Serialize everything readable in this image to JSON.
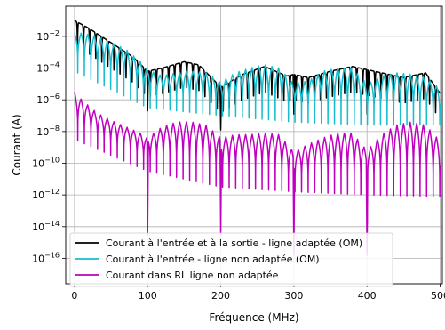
{
  "chart_data": {
    "type": "line",
    "xlabel": "Fréquence (MHz)",
    "ylabel": "Courant (A)",
    "xlim": [
      -12,
      503
    ],
    "ylim_log10": [
      -17.6,
      -0.1
    ],
    "y_scale": "log",
    "grid": true,
    "legend_position": "lower-left",
    "x_ticks": [
      {
        "value": 0,
        "label": "0"
      },
      {
        "value": 100,
        "label": "100"
      },
      {
        "value": 200,
        "label": "200"
      },
      {
        "value": 300,
        "label": "300"
      },
      {
        "value": 400,
        "label": "400"
      },
      {
        "value": 500,
        "label": "500"
      }
    ],
    "y_ticks": [
      {
        "exp": -2,
        "base": "10",
        "sup": "−2"
      },
      {
        "exp": -4,
        "base": "10",
        "sup": "−4"
      },
      {
        "exp": -6,
        "base": "10",
        "sup": "−6"
      },
      {
        "exp": -8,
        "base": "10",
        "sup": "−8"
      },
      {
        "exp": -10,
        "base": "10",
        "sup": "−10"
      },
      {
        "exp": -12,
        "base": "10",
        "sup": "−12"
      },
      {
        "exp": -14,
        "base": "10",
        "sup": "−14"
      },
      {
        "exp": -16,
        "base": "10",
        "sup": "−16"
      }
    ],
    "series": [
      {
        "name": "Courant à l'entrée et à la sortie - ligne adaptée (OM)",
        "color": "#000000",
        "envelope_log10": {
          "x": [
            0,
            20,
            50,
            80,
            100,
            120,
            150,
            170,
            200,
            230,
            260,
            290,
            300,
            320,
            350,
            380,
            400,
            420,
            450,
            480,
            500
          ],
          "y": [
            -1.0,
            -1.5,
            -2.4,
            -3.3,
            -4.2,
            -4.0,
            -3.6,
            -3.8,
            -5.2,
            -4.4,
            -3.9,
            -4.5,
            -4.4,
            -4.6,
            -4.2,
            -3.9,
            -4.1,
            -4.3,
            -4.6,
            -4.3,
            -5.6
          ]
        },
        "notch_spacing_mhz": 8.3,
        "notch_depth_log10": 1.8,
        "deep_nulls": [
          {
            "x": 100,
            "y_log10": -6.7
          },
          {
            "x": 200,
            "y_log10": -7.9
          },
          {
            "x": 300,
            "y_log10": -6.9
          },
          {
            "x": 400,
            "y_log10": -6.9
          }
        ]
      },
      {
        "name": "Courant à l'entrée - ligne non adaptée (OM)",
        "color": "#17becf",
        "envelope_log10": {
          "x": [
            0,
            10,
            30,
            50,
            70,
            90,
            100,
            120,
            140,
            160,
            180,
            200,
            220,
            240,
            260,
            280,
            300,
            320,
            340,
            360,
            380,
            400,
            420,
            440,
            460,
            480,
            500
          ],
          "y": [
            -1.8,
            -1.8,
            -2.0,
            -2.4,
            -2.8,
            -3.6,
            -4.1,
            -4.5,
            -4.3,
            -4.2,
            -4.3,
            -4.9,
            -4.3,
            -4.0,
            -3.8,
            -4.0,
            -5.0,
            -4.8,
            -4.2,
            -4.0,
            -4.0,
            -5.0,
            -4.5,
            -4.3,
            -4.4,
            -4.6,
            -5.3
          ]
        },
        "notch_spacing_mhz": 9.0,
        "notch_floor_log10": {
          "x": [
            0,
            100,
            200,
            300,
            400,
            500
          ],
          "y": [
            -4.2,
            -6.5,
            -7.0,
            -7.4,
            -7.6,
            -7.6
          ]
        }
      },
      {
        "name": "Courant dans RL ligne non adaptée",
        "color": "#bf00bf",
        "envelope_log10": {
          "x": [
            0,
            10,
            30,
            50,
            70,
            90,
            100,
            120,
            140,
            160,
            180,
            200,
            220,
            240,
            260,
            280,
            300,
            320,
            340,
            360,
            380,
            400,
            420,
            440,
            460,
            480,
            500
          ],
          "y": [
            -5.5,
            -6.0,
            -6.8,
            -7.3,
            -7.7,
            -8.1,
            -8.4,
            -7.7,
            -7.4,
            -7.4,
            -7.6,
            -8.4,
            -8.2,
            -8.2,
            -8.1,
            -8.2,
            -9.3,
            -8.8,
            -8.4,
            -8.1,
            -8.1,
            -9.2,
            -8.2,
            -7.6,
            -7.4,
            -7.6,
            -8.6
          ]
        },
        "notch_spacing_mhz": 9.0,
        "notch_floor_log10": {
          "x": [
            0,
            100,
            200,
            300,
            400,
            500
          ],
          "y": [
            -8.5,
            -10.5,
            -11.5,
            -11.8,
            -12.0,
            -12.1
          ]
        },
        "deep_nulls": [
          {
            "x": 100,
            "y_log10": -14.5
          },
          {
            "x": 200,
            "y_log10": -14.5
          },
          {
            "x": 300,
            "y_log10": -15.8
          },
          {
            "x": 400,
            "y_log10": -15.8
          }
        ]
      }
    ]
  }
}
